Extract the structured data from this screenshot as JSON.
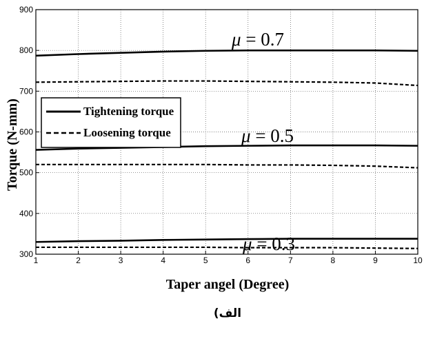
{
  "chart_data": {
    "type": "line",
    "title": "",
    "xlabel": "Taper angel (Degree)",
    "ylabel": "Torque (N-mm)",
    "xlim": [
      1,
      10
    ],
    "ylim": [
      300,
      900
    ],
    "xticks": [
      1,
      2,
      3,
      4,
      5,
      6,
      7,
      8,
      9,
      10
    ],
    "yticks": [
      300,
      400,
      500,
      600,
      700,
      800,
      900
    ],
    "grid": true,
    "legend_placement": "left",
    "legend": [
      "Tightening torque",
      "Loosening torque"
    ],
    "series": [
      {
        "group": "μ = 0.7",
        "style": "solid",
        "x": [
          1,
          2,
          3,
          4,
          5,
          6,
          7,
          8,
          9,
          10
        ],
        "y": [
          787,
          791,
          794,
          797,
          799,
          800,
          800,
          800,
          800,
          799
        ]
      },
      {
        "group": "μ = 0.7",
        "style": "dashed",
        "x": [
          1,
          2,
          3,
          4,
          5,
          6,
          7,
          8,
          9,
          10
        ],
        "y": [
          722,
          723,
          724,
          725,
          725,
          724,
          723,
          722,
          720,
          714
        ]
      },
      {
        "group": "μ = 0.5",
        "style": "solid",
        "x": [
          1,
          2,
          3,
          4,
          5,
          6,
          7,
          8,
          9,
          10
        ],
        "y": [
          556,
          559,
          561,
          563,
          565,
          566,
          567,
          567,
          567,
          566
        ]
      },
      {
        "group": "μ = 0.5",
        "style": "dashed",
        "x": [
          1,
          2,
          3,
          4,
          5,
          6,
          7,
          8,
          9,
          10
        ],
        "y": [
          520,
          520,
          520,
          520,
          520,
          519,
          519,
          518,
          516,
          512
        ]
      },
      {
        "group": "μ = 0.3",
        "style": "solid",
        "x": [
          1,
          2,
          3,
          4,
          5,
          6,
          7,
          8,
          9,
          10
        ],
        "y": [
          330,
          332,
          333,
          335,
          336,
          337,
          338,
          338,
          338,
          338
        ]
      },
      {
        "group": "μ = 0.3",
        "style": "dashed",
        "x": [
          1,
          2,
          3,
          4,
          5,
          6,
          7,
          8,
          9,
          10
        ],
        "y": [
          317,
          317,
          317,
          317,
          317,
          316,
          316,
          316,
          315,
          314
        ]
      }
    ],
    "annotations": [
      {
        "symbol": "μ",
        "text": " =  0.7"
      },
      {
        "symbol": "μ",
        "text": " = 0.5"
      },
      {
        "symbol": "μ",
        "text": " = 0.3"
      }
    ]
  },
  "caption": "الف)"
}
